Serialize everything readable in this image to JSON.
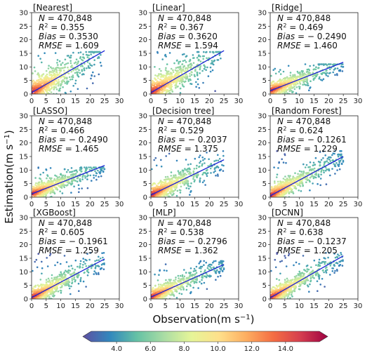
{
  "figure": {
    "xlabel": "Observation(m s",
    "ylabel": "Estimation(m s",
    "unit_exp": "−1",
    "xlabel_close": ")",
    "ylabel_close": ")"
  },
  "colorbar": {
    "ticks": [
      "4.0",
      "6.0",
      "8.0",
      "10.0",
      "12.0",
      "14.0"
    ],
    "tick_values": [
      4,
      6,
      8,
      10,
      12,
      14
    ],
    "range": [
      2.5,
      16.0
    ],
    "colors": [
      "#5e4fa2",
      "#3288bd",
      "#66c2a5",
      "#abdda4",
      "#e6f598",
      "#fee08b",
      "#fdae61",
      "#f46d43",
      "#d53e4f",
      "#9e0142"
    ]
  },
  "chart_data": [
    {
      "type": "scatter",
      "title": "[Nearest]",
      "stats": {
        "N": "470,848",
        "R2": "0.355",
        "Bias": "0.3530",
        "RMSE": "1.609"
      },
      "fit": {
        "slope": 0.62,
        "intercept": 0.5
      },
      "spread": {
        "ymax_core": 14.5,
        "ymax_scatter": 15.5,
        "xmax": 24,
        "noise": 3.2
      },
      "xlim": [
        0,
        30
      ],
      "ylim": [
        0,
        30
      ],
      "xticks": [
        0,
        5,
        10,
        15,
        20,
        25,
        30
      ],
      "yticks": [
        0,
        5,
        10,
        15,
        20,
        25,
        30
      ]
    },
    {
      "type": "scatter",
      "title": "[Linear]",
      "stats": {
        "N": "470,848",
        "R2": "0.367",
        "Bias": "0.3620",
        "RMSE": "1.594"
      },
      "fit": {
        "slope": 0.62,
        "intercept": 0.5
      },
      "spread": {
        "ymax_core": 14.5,
        "ymax_scatter": 15.5,
        "xmax": 24,
        "noise": 3.1
      },
      "xlim": [
        0,
        30
      ],
      "ylim": [
        0,
        30
      ],
      "xticks": [
        0,
        5,
        10,
        15,
        20,
        25,
        30
      ],
      "yticks": [
        0,
        5,
        10,
        15,
        20,
        25,
        30
      ]
    },
    {
      "type": "scatter",
      "title": "[Ridge]",
      "stats": {
        "N": "470,848",
        "R2": "0.469",
        "Bias": "− 0.2490",
        "RMSE": "1.460"
      },
      "fit": {
        "slope": 0.42,
        "intercept": 1.2
      },
      "spread": {
        "ymax_core": 10.5,
        "ymax_scatter": 11,
        "xmax": 25,
        "noise": 1.9
      },
      "xlim": [
        0,
        30
      ],
      "ylim": [
        0,
        30
      ],
      "xticks": [
        0,
        5,
        10,
        15,
        20,
        25,
        30
      ],
      "yticks": [
        0,
        5,
        10,
        15,
        20,
        25,
        30
      ]
    },
    {
      "type": "scatter",
      "title": "[LASSO]",
      "stats": {
        "N": "470,848",
        "R2": "0.466",
        "Bias": "− 0.2490",
        "RMSE": "1.465"
      },
      "fit": {
        "slope": 0.42,
        "intercept": 1.2
      },
      "spread": {
        "ymax_core": 10.5,
        "ymax_scatter": 11,
        "xmax": 25,
        "noise": 1.9
      },
      "xlim": [
        0,
        30
      ],
      "ylim": [
        0,
        30
      ],
      "xticks": [
        0,
        5,
        10,
        15,
        20,
        25,
        30
      ],
      "yticks": [
        0,
        5,
        10,
        15,
        20,
        25,
        30
      ]
    },
    {
      "type": "scatter",
      "title": "[Decision tree]",
      "stats": {
        "N": "470,848",
        "R2": "0.529",
        "Bias": "− 0.2037",
        "RMSE": "1.375"
      },
      "fit": {
        "slope": 0.52,
        "intercept": 0.8
      },
      "spread": {
        "ymax_core": 16,
        "ymax_scatter": 17,
        "xmax": 25,
        "noise": 2.4
      },
      "xlim": [
        0,
        30
      ],
      "ylim": [
        0,
        30
      ],
      "xticks": [
        0,
        5,
        10,
        15,
        20,
        25,
        30
      ],
      "yticks": [
        0,
        5,
        10,
        15,
        20,
        25,
        30
      ]
    },
    {
      "type": "scatter",
      "title": "[Random Forest]",
      "stats": {
        "N": "470,848",
        "R2": "0.624",
        "Bias": "− 0.1261",
        "RMSE": "1.229"
      },
      "fit": {
        "slope": 0.58,
        "intercept": 0.5
      },
      "spread": {
        "ymax_core": 16,
        "ymax_scatter": 17,
        "xmax": 25,
        "noise": 2.2
      },
      "xlim": [
        0,
        30
      ],
      "ylim": [
        0,
        30
      ],
      "xticks": [
        0,
        5,
        10,
        15,
        20,
        25,
        30
      ],
      "yticks": [
        0,
        5,
        10,
        15,
        20,
        25,
        30
      ]
    },
    {
      "type": "scatter",
      "title": "[XGBoost]",
      "stats": {
        "N": "470,848",
        "R2": "0.605",
        "Bias": "− 0.1961",
        "RMSE": "1.259"
      },
      "fit": {
        "slope": 0.57,
        "intercept": 0.5
      },
      "spread": {
        "ymax_core": 16,
        "ymax_scatter": 17,
        "xmax": 25,
        "noise": 2.2
      },
      "xlim": [
        0,
        30
      ],
      "ylim": [
        0,
        30
      ],
      "xticks": [
        0,
        5,
        10,
        15,
        20,
        25,
        30
      ],
      "yticks": [
        0,
        5,
        10,
        15,
        20,
        25,
        30
      ]
    },
    {
      "type": "scatter",
      "title": "[MLP]",
      "stats": {
        "N": "470,848",
        "R2": "0.538",
        "Bias": "− 0.2796",
        "RMSE": "1.362"
      },
      "fit": {
        "slope": 0.48,
        "intercept": 0.7
      },
      "spread": {
        "ymax_core": 13,
        "ymax_scatter": 14,
        "xmax": 25,
        "noise": 2.0
      },
      "xlim": [
        0,
        30
      ],
      "ylim": [
        0,
        30
      ],
      "xticks": [
        0,
        5,
        10,
        15,
        20,
        25,
        30
      ],
      "yticks": [
        0,
        5,
        10,
        15,
        20,
        25,
        30
      ]
    },
    {
      "type": "scatter",
      "title": "[DCNN]",
      "stats": {
        "N": "470,848",
        "R2": "0.638",
        "Bias": "− 0.1237",
        "RMSE": "1.205"
      },
      "fit": {
        "slope": 0.62,
        "intercept": 0.4
      },
      "spread": {
        "ymax_core": 16,
        "ymax_scatter": 17,
        "xmax": 25,
        "noise": 2.1
      },
      "xlim": [
        0,
        30
      ],
      "ylim": [
        0,
        30
      ],
      "xticks": [
        0,
        5,
        10,
        15,
        20,
        25,
        30
      ],
      "yticks": [
        0,
        5,
        10,
        15,
        20,
        25,
        30
      ]
    }
  ]
}
